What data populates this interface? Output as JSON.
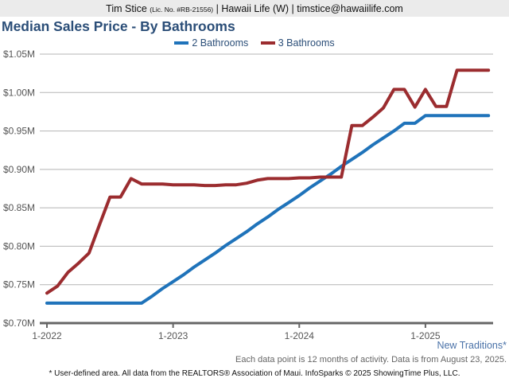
{
  "header": {
    "name": "Tim Stice",
    "license": "(Lic. No. #RB-21556)",
    "rest": "| Hawaii Life (W) | timstice@hawaiilife.com"
  },
  "area_label": "New Traditions*",
  "note": "Each data point is 12 months of activity. Data is from August 23, 2025.",
  "footer": "* User-defined area. All data from the REALTORS® Association of Maui. InfoSparks © 2025 ShowingTime Plus, LLC.",
  "chart_data": {
    "type": "line",
    "title": "Median Sales Price - By Bathrooms",
    "legend_position": "top-center",
    "grid": true,
    "x_start": "2022-01",
    "x_end": "2025-07",
    "x_step": "month",
    "x_ticks": [
      "1-2022",
      "1-2023",
      "1-2024",
      "1-2025"
    ],
    "y_ticks": [
      "$0.70M",
      "$0.75M",
      "$0.80M",
      "$0.85M",
      "$0.90M",
      "$0.95M",
      "$1.00M",
      "$1.05M"
    ],
    "ylim": [
      0.7,
      1.05
    ],
    "yunit": "$M",
    "series": [
      {
        "name": "2 Bathrooms",
        "color": "#1f73ba",
        "values": [
          0.726,
          0.726,
          0.726,
          0.726,
          0.726,
          0.726,
          0.726,
          0.726,
          0.726,
          0.726,
          0.735,
          0.745,
          0.754,
          0.763,
          0.773,
          0.782,
          0.791,
          0.801,
          0.81,
          0.819,
          0.829,
          0.838,
          0.848,
          0.857,
          0.866,
          0.876,
          0.885,
          0.894,
          0.904,
          0.913,
          0.922,
          0.932,
          0.941,
          0.95,
          0.96,
          0.96,
          0.97,
          0.97,
          0.97,
          0.97,
          0.97,
          0.97,
          0.97
        ]
      },
      {
        "name": "3 Bathrooms",
        "color": "#9b2c2f",
        "values": [
          0.739,
          0.748,
          0.766,
          0.778,
          0.791,
          0.828,
          0.864,
          0.864,
          0.888,
          0.881,
          0.881,
          0.881,
          0.88,
          0.88,
          0.88,
          0.879,
          0.879,
          0.88,
          0.88,
          0.882,
          0.886,
          0.888,
          0.888,
          0.888,
          0.889,
          0.889,
          0.89,
          0.89,
          0.89,
          0.957,
          0.957,
          0.968,
          0.98,
          1.004,
          1.004,
          0.981,
          1.004,
          0.982,
          0.982,
          1.029,
          1.029,
          1.029,
          1.029
        ]
      }
    ]
  }
}
